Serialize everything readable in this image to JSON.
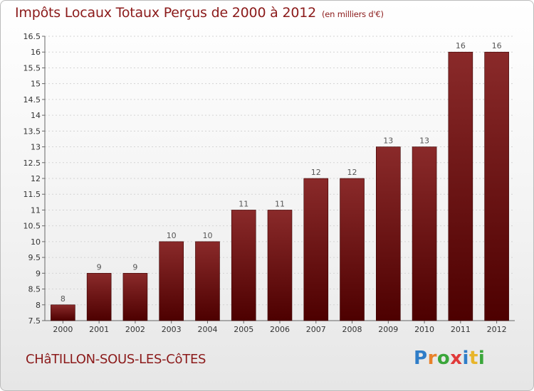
{
  "title": "Impôts Locaux Totaux Perçus de 2000 à 2012",
  "unit_note": "(en milliers d'€)",
  "commune": "CHâTILLON-SOUS-LES-CôTES",
  "logo": {
    "text": "Proxiti",
    "colors": [
      "#2f7dc8",
      "#e8812a",
      "#3aa63a",
      "#e03a3a",
      "#2f7dc8",
      "#e8b52a",
      "#3aa63a"
    ]
  },
  "chart_data": {
    "type": "bar",
    "title": "Impôts Locaux Totaux Perçus de 2000 à 2012",
    "subtitle": "(en milliers d'€)",
    "xlabel": "",
    "ylabel": "",
    "categories": [
      "2000",
      "2001",
      "2002",
      "2003",
      "2004",
      "2005",
      "2006",
      "2007",
      "2008",
      "2009",
      "2010",
      "2011",
      "2012"
    ],
    "values": [
      8,
      9,
      9,
      10,
      10,
      11,
      11,
      12,
      12,
      13,
      13,
      16,
      16
    ],
    "data_labels": [
      "8",
      "9",
      "9",
      "10",
      "10",
      "11",
      "11",
      "12",
      "12",
      "13",
      "13",
      "16",
      "16"
    ],
    "ylim": [
      7.5,
      16.5
    ],
    "yticks": [
      7.5,
      8,
      8.5,
      9,
      9.5,
      10,
      10.5,
      11,
      11.5,
      12,
      12.5,
      13,
      13.5,
      14,
      14.5,
      15,
      15.5,
      16,
      16.5
    ],
    "ytick_labels": [
      "7.5",
      "8",
      "8.5",
      "9",
      "9.5",
      "10",
      "10.5",
      "11",
      "11.5",
      "12",
      "12.5",
      "13",
      "13.5",
      "14",
      "14.5",
      "15",
      "15.5",
      "16",
      "16.5"
    ],
    "bar_color": "#7a1515",
    "grid": true,
    "legend": "none"
  }
}
